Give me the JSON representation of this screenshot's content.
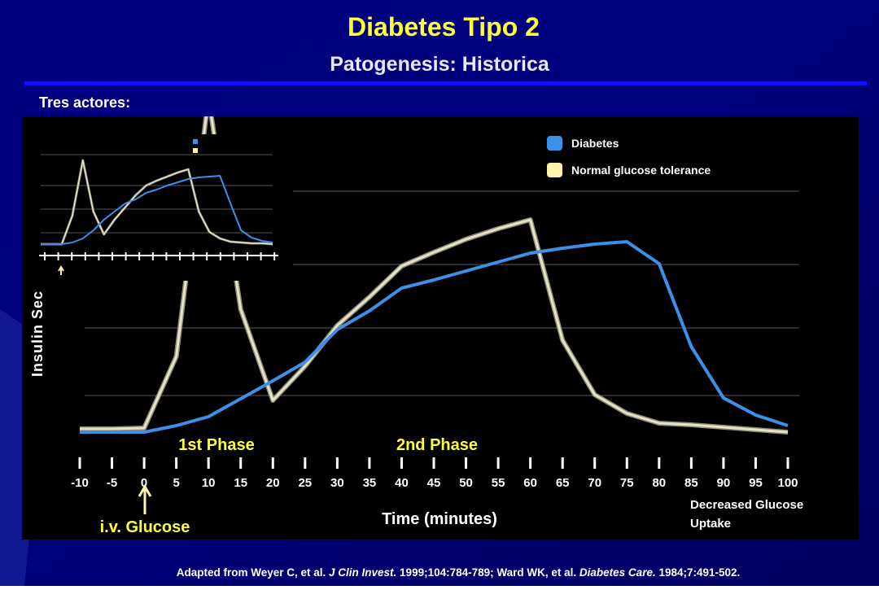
{
  "slide": {
    "title": "Diabetes Tipo 2",
    "subtitle": "Patogenesis: Historica",
    "section": "Tres actores:",
    "footnote": [
      {
        "text": "Adapted from Weyer C, et al. ",
        "italic": false
      },
      {
        "text": "J Clin Invest.",
        "italic": true
      },
      {
        "text": " 1999;104:784-789; Ward WK, et al. ",
        "italic": false
      },
      {
        "text": "Diabetes Care.",
        "italic": true
      },
      {
        "text": " 1984;7:491-502.",
        "italic": false
      }
    ]
  },
  "chart_data": [
    {
      "type": "line",
      "ylabel": "Insulin Sec",
      "xlabel": "Time (minutes)",
      "annotations": [
        "1st Phase",
        "2nd Phase",
        "i.v. Glucose",
        "Decreased Glucose",
        "Uptake"
      ],
      "x": [
        -10,
        -5,
        0,
        5,
        10,
        15,
        20,
        25,
        30,
        35,
        40,
        45,
        50,
        55,
        60,
        65,
        70,
        75,
        80,
        85,
        90,
        95,
        100
      ],
      "xlim": [
        -10,
        100
      ],
      "xticks": [
        -10,
        -5,
        0,
        5,
        10,
        15,
        20,
        25,
        30,
        35,
        40,
        45,
        50,
        55,
        60,
        65,
        70,
        75,
        80,
        85,
        90,
        95,
        100
      ],
      "ylim": [
        0,
        310
      ],
      "series": [
        {
          "name": "Diabetes",
          "color": "#3d8fe8",
          "values": [
            9,
            9,
            9,
            17,
            28,
            50,
            72,
            95,
            135,
            158,
            186,
            196,
            207,
            218,
            229,
            235,
            240,
            243,
            216,
            114,
            51,
            30,
            17
          ]
        },
        {
          "name": "Normal glucose tolerance",
          "color": "#e8e3c0",
          "values": [
            13,
            13,
            14,
            102,
            420,
            160,
            48,
            90,
            140,
            175,
            213,
            230,
            246,
            259,
            270,
            122,
            55,
            32,
            20,
            18,
            15,
            12,
            9
          ]
        }
      ]
    },
    {
      "type": "line",
      "x": [
        -10,
        -5,
        0,
        5,
        10,
        15,
        20,
        25,
        30,
        35,
        40,
        45,
        50,
        55,
        60,
        65,
        70,
        75,
        80,
        85,
        90,
        95,
        100
      ],
      "xlim": [
        -10,
        100
      ],
      "ylim": [
        0,
        110
      ],
      "series": [
        {
          "color": "#3d8fe8",
          "values": [
            0,
            0,
            0,
            2,
            7,
            17,
            30,
            40,
            50,
            55,
            63,
            67,
            72,
            76,
            80,
            82,
            83,
            84,
            50,
            17,
            8,
            4,
            2
          ]
        },
        {
          "color": "#e8e3c0",
          "values": [
            0,
            0,
            0,
            35,
            103,
            40,
            12,
            30,
            45,
            60,
            72,
            78,
            83,
            88,
            92,
            40,
            15,
            7,
            3,
            2,
            1,
            1,
            0
          ]
        }
      ]
    }
  ]
}
